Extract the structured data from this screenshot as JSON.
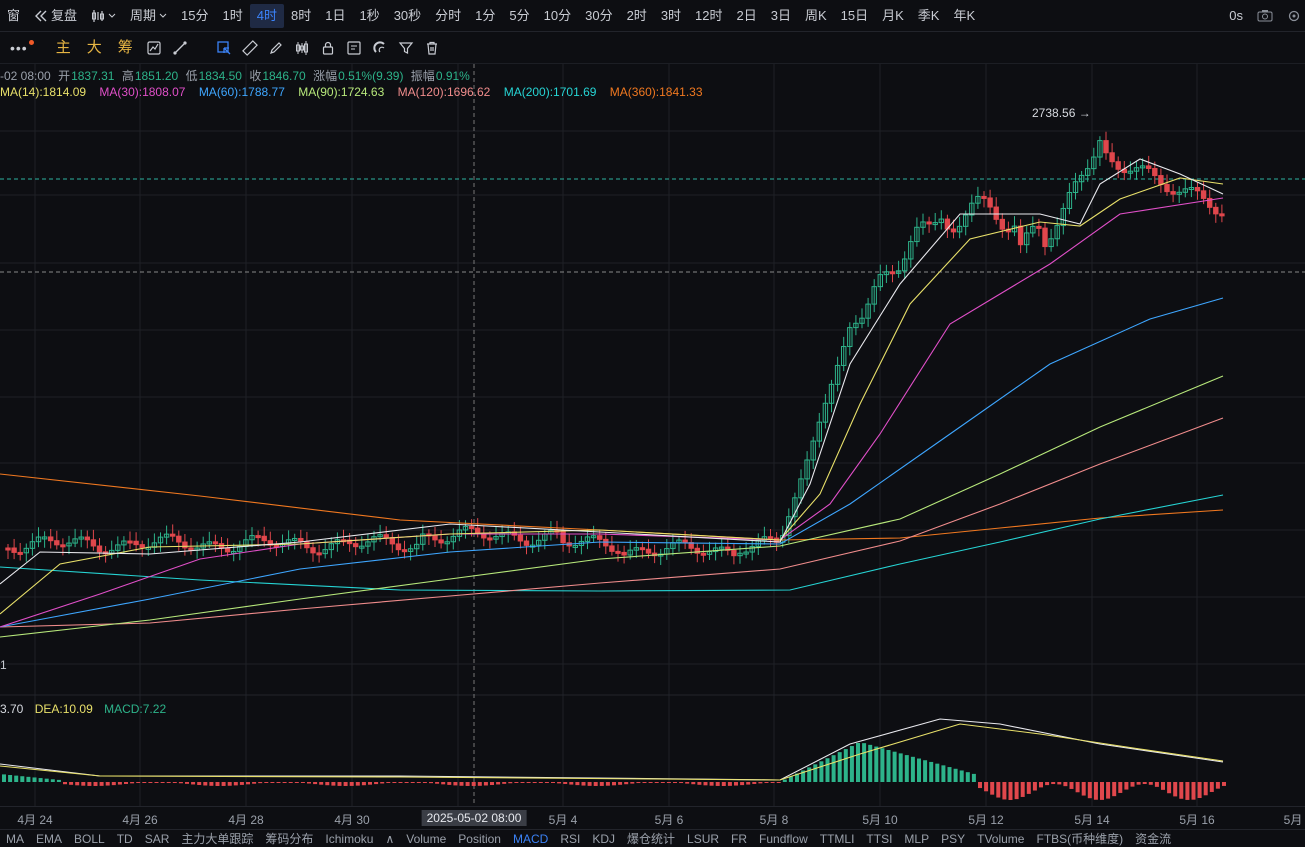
{
  "topbar": {
    "items": [
      {
        "label": "窗",
        "icon": ""
      },
      {
        "label": "复盘",
        "icon": "replay-icon"
      },
      {
        "label": "",
        "icon": "candle-type-icon"
      },
      {
        "label": "周期",
        "icon": "chevron-down-icon"
      },
      {
        "label": "15分"
      },
      {
        "label": "1时"
      },
      {
        "label": "4时",
        "active": true
      },
      {
        "label": "8时"
      },
      {
        "label": "1日"
      },
      {
        "label": "1秒"
      },
      {
        "label": "30秒"
      },
      {
        "label": "分时"
      },
      {
        "label": "1分"
      },
      {
        "label": "5分"
      },
      {
        "label": "10分"
      },
      {
        "label": "30分"
      },
      {
        "label": "2时"
      },
      {
        "label": "3时"
      },
      {
        "label": "12时"
      },
      {
        "label": "2日"
      },
      {
        "label": "3日"
      },
      {
        "label": "周K"
      },
      {
        "label": "15日"
      },
      {
        "label": "月K"
      },
      {
        "label": "季K"
      },
      {
        "label": "年K"
      }
    ],
    "right_label": "0s"
  },
  "toolbar": {
    "main_labels": [
      "主",
      "大",
      "筹"
    ],
    "tools": [
      "indicator-icon",
      "ruler-icon",
      "pencil-icon",
      "candles-icon",
      "lock-icon",
      "note-icon",
      "magnet-icon",
      "filter-icon",
      "trash-icon"
    ]
  },
  "ohlc": {
    "date": "-02 08:00",
    "open_label": "开",
    "open": "1837.31",
    "high_label": "高",
    "high": "1851.20",
    "low_label": "低",
    "low": "1834.50",
    "close_label": "收",
    "close": "1846.70",
    "change_label": "涨幅",
    "change": "0.51%(9.39)",
    "amp_label": "振幅",
    "amp": "0.91%"
  },
  "ma_legend": [
    {
      "text": "MA(14):1814.09",
      "color": "#e8e06a"
    },
    {
      "text": "MA(30):1808.07",
      "color": "#e04fc8"
    },
    {
      "text": "MA(60):1788.77",
      "color": "#3ea6ff"
    },
    {
      "text": "MA(90):1724.63",
      "color": "#b7e87b"
    },
    {
      "text": "MA(120):1696.62",
      "color": "#f08c8c"
    },
    {
      "text": "MA(200):1701.69",
      "color": "#26d4d4"
    },
    {
      "text": "MA(360):1841.33",
      "color": "#f07820"
    }
  ],
  "high_marker": "2738.56 →",
  "left_label": "1",
  "macd_legend": {
    "dif": "3.70",
    "dea": "DEA:10.09",
    "macd": "MACD:7.22"
  },
  "xaxis": {
    "labels": [
      "4月 24",
      "4月 26",
      "4月 28",
      "4月 30",
      "2025-05-02 08:00",
      "5月 4",
      "5月 6",
      "5月 8",
      "5月 10",
      "5月 12",
      "5月 14",
      "5月 16",
      "5月"
    ]
  },
  "bottombar": {
    "items": [
      "MA",
      "EMA",
      "BOLL",
      "TD",
      "SAR",
      "主力大单跟踪",
      "筹码分布",
      "Ichimoku",
      "∧",
      "Volume",
      "Position",
      "MACD",
      "RSI",
      "KDJ",
      "爆仓统计",
      "LSUR",
      "FR",
      "Fundflow",
      "TTMLI",
      "TTSI",
      "MLP",
      "PSY",
      "TVolume",
      "FTBS(币种维度)",
      "资金流"
    ],
    "active": "MACD"
  },
  "colors": {
    "up": "#2db38a",
    "down": "#e0474c",
    "grid": "#1e2026"
  }
}
